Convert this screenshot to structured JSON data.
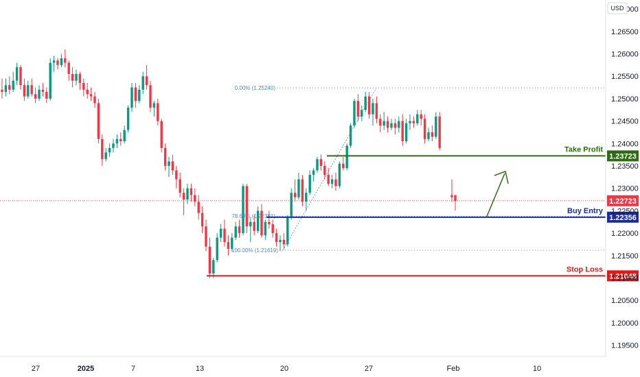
{
  "chart_data": {
    "type": "candlestick",
    "currency": "USD",
    "ylim": [
      1.1925,
      1.272
    ],
    "y_ticks": [
      "1.27000",
      "1.26500",
      "1.26000",
      "1.25500",
      "1.25000",
      "1.24500",
      "1.24000",
      "1.23500",
      "1.23000",
      "1.22500",
      "1.22000",
      "1.21500",
      "1.21000",
      "1.20500",
      "1.20000",
      "1.19500"
    ],
    "x_ticks": [
      "27",
      "2025",
      "7",
      "13",
      "20",
      "27",
      "Feb",
      "10"
    ],
    "last_price": "1.22723",
    "levels": [
      {
        "name": "Take Profit",
        "value": 1.23723,
        "label": "1.23723",
        "color": "#2e6b12"
      },
      {
        "name": "Buy Entry",
        "value": 1.22356,
        "label": "1.22356",
        "color": "#1a2aa0"
      },
      {
        "name": "Stop Loss",
        "value": 1.21048,
        "label": "1.21048",
        "color": "#e01818"
      }
    ],
    "fib": [
      {
        "label": "0.00% (1.25240)",
        "value": 1.2524
      },
      {
        "label": "78.60% (1.22381)",
        "value": 1.22381
      },
      {
        "label": "100.00% (1.21619)",
        "value": 1.21619
      }
    ],
    "candles": [
      [
        1.252,
        1.2545,
        1.25,
        1.2515
      ],
      [
        1.2515,
        1.2545,
        1.2505,
        1.253
      ],
      [
        1.253,
        1.255,
        1.251,
        1.252
      ],
      [
        1.252,
        1.256,
        1.2515,
        1.254
      ],
      [
        1.254,
        1.258,
        1.253,
        1.257
      ],
      [
        1.257,
        1.2575,
        1.252,
        1.253
      ],
      [
        1.253,
        1.2545,
        1.2495,
        1.2505
      ],
      [
        1.2505,
        1.254,
        1.25,
        1.253
      ],
      [
        1.253,
        1.2545,
        1.2505,
        1.251
      ],
      [
        1.251,
        1.2525,
        1.249,
        1.25
      ],
      [
        1.25,
        1.253,
        1.2495,
        1.252
      ],
      [
        1.252,
        1.2535,
        1.2505,
        1.2515
      ],
      [
        1.2515,
        1.2525,
        1.249,
        1.25
      ],
      [
        1.25,
        1.259,
        1.2495,
        1.258
      ],
      [
        1.258,
        1.2595,
        1.256,
        1.2585
      ],
      [
        1.2585,
        1.259,
        1.2565,
        1.2575
      ],
      [
        1.2575,
        1.26,
        1.257,
        1.259
      ],
      [
        1.259,
        1.261,
        1.257,
        1.258
      ],
      [
        1.258,
        1.2585,
        1.254,
        1.2555
      ],
      [
        1.2555,
        1.257,
        1.2525,
        1.254
      ],
      [
        1.254,
        1.2565,
        1.253,
        1.2555
      ],
      [
        1.2555,
        1.256,
        1.252,
        1.2535
      ],
      [
        1.2535,
        1.2545,
        1.2505,
        1.252
      ],
      [
        1.252,
        1.2535,
        1.25,
        1.251
      ],
      [
        1.251,
        1.2525,
        1.2495,
        1.2505
      ],
      [
        1.2505,
        1.2515,
        1.248,
        1.249
      ],
      [
        1.249,
        1.25,
        1.24,
        1.241
      ],
      [
        1.241,
        1.242,
        1.235,
        1.2365
      ],
      [
        1.2365,
        1.239,
        1.236,
        1.238
      ],
      [
        1.238,
        1.24,
        1.237,
        1.239
      ],
      [
        1.239,
        1.241,
        1.238,
        1.24
      ],
      [
        1.24,
        1.242,
        1.239,
        1.241
      ],
      [
        1.241,
        1.2425,
        1.2395,
        1.2405
      ],
      [
        1.2405,
        1.244,
        1.24,
        1.243
      ],
      [
        1.243,
        1.2485,
        1.2425,
        1.248
      ],
      [
        1.248,
        1.2535,
        1.247,
        1.2525
      ],
      [
        1.2525,
        1.2535,
        1.248,
        1.2495
      ],
      [
        1.2495,
        1.253,
        1.249,
        1.252
      ],
      [
        1.252,
        1.256,
        1.251,
        1.255
      ],
      [
        1.255,
        1.2575,
        1.252,
        1.253
      ],
      [
        1.253,
        1.254,
        1.247,
        1.248
      ],
      [
        1.248,
        1.2495,
        1.246,
        1.249
      ],
      [
        1.249,
        1.25,
        1.244,
        1.245
      ],
      [
        1.245,
        1.2455,
        1.238,
        1.239
      ],
      [
        1.239,
        1.24,
        1.234,
        1.235
      ],
      [
        1.235,
        1.237,
        1.2325,
        1.236
      ],
      [
        1.236,
        1.2375,
        1.233,
        1.234
      ],
      [
        1.234,
        1.235,
        1.23,
        1.232
      ],
      [
        1.232,
        1.2335,
        1.228,
        1.229
      ],
      [
        1.229,
        1.23,
        1.224,
        1.2275
      ],
      [
        1.2275,
        1.231,
        1.2265,
        1.23
      ],
      [
        1.23,
        1.231,
        1.227,
        1.2285
      ],
      [
        1.2285,
        1.23,
        1.226,
        1.227
      ],
      [
        1.227,
        1.2285,
        1.223,
        1.2245
      ],
      [
        1.2245,
        1.226,
        1.22,
        1.2215
      ],
      [
        1.2215,
        1.223,
        1.216,
        1.217
      ],
      [
        1.217,
        1.219,
        1.21,
        1.211
      ],
      [
        1.211,
        1.2145,
        1.21,
        1.214
      ],
      [
        1.214,
        1.22,
        1.2135,
        1.219
      ],
      [
        1.219,
        1.222,
        1.218,
        1.221
      ],
      [
        1.221,
        1.223,
        1.217,
        1.218
      ],
      [
        1.218,
        1.2195,
        1.215,
        1.2165
      ],
      [
        1.2165,
        1.22,
        1.216,
        1.219
      ],
      [
        1.219,
        1.2225,
        1.2185,
        1.2215
      ],
      [
        1.2215,
        1.223,
        1.219,
        1.22
      ],
      [
        1.22,
        1.231,
        1.2195,
        1.2305
      ],
      [
        1.2305,
        1.231,
        1.22,
        1.2215
      ],
      [
        1.2215,
        1.2235,
        1.218,
        1.2225
      ],
      [
        1.2225,
        1.224,
        1.2195,
        1.2205
      ],
      [
        1.2205,
        1.226,
        1.22,
        1.225
      ],
      [
        1.225,
        1.2265,
        1.219,
        1.2195
      ],
      [
        1.2195,
        1.223,
        1.2185,
        1.2225
      ],
      [
        1.2225,
        1.225,
        1.221,
        1.222
      ],
      [
        1.222,
        1.223,
        1.219,
        1.22
      ],
      [
        1.22,
        1.221,
        1.217,
        1.218
      ],
      [
        1.218,
        1.2195,
        1.216,
        1.2185
      ],
      [
        1.2185,
        1.22,
        1.2165,
        1.2175
      ],
      [
        1.2175,
        1.224,
        1.217,
        1.2235
      ],
      [
        1.2235,
        1.23,
        1.223,
        1.229
      ],
      [
        1.229,
        1.232,
        1.227,
        1.228
      ],
      [
        1.228,
        1.2335,
        1.2275,
        1.232
      ],
      [
        1.232,
        1.233,
        1.226,
        1.227
      ],
      [
        1.227,
        1.23,
        1.225,
        1.229
      ],
      [
        1.229,
        1.234,
        1.2285,
        1.233
      ],
      [
        1.233,
        1.2345,
        1.2315,
        1.234
      ],
      [
        1.234,
        1.237,
        1.2335,
        1.2365
      ],
      [
        1.2365,
        1.2375,
        1.234,
        1.235
      ],
      [
        1.235,
        1.236,
        1.232,
        1.233
      ],
      [
        1.233,
        1.2345,
        1.2305,
        1.231
      ],
      [
        1.231,
        1.233,
        1.23,
        1.232
      ],
      [
        1.232,
        1.2335,
        1.2295,
        1.2305
      ],
      [
        1.2305,
        1.236,
        1.23,
        1.2355
      ],
      [
        1.2355,
        1.237,
        1.234,
        1.2345
      ],
      [
        1.2345,
        1.24,
        1.234,
        1.2395
      ],
      [
        1.2395,
        1.2445,
        1.239,
        1.244
      ],
      [
        1.244,
        1.25,
        1.2435,
        1.2495
      ],
      [
        1.2495,
        1.251,
        1.245,
        1.246
      ],
      [
        1.246,
        1.2485,
        1.245,
        1.2475
      ],
      [
        1.2475,
        1.2515,
        1.247,
        1.2505
      ],
      [
        1.2505,
        1.2515,
        1.2455,
        1.2465
      ],
      [
        1.2465,
        1.25,
        1.244,
        1.249
      ],
      [
        1.249,
        1.2505,
        1.2445,
        1.2455
      ],
      [
        1.2455,
        1.2465,
        1.2425,
        1.244
      ],
      [
        1.244,
        1.247,
        1.243,
        1.245
      ],
      [
        1.245,
        1.246,
        1.2425,
        1.2435
      ],
      [
        1.2435,
        1.2455,
        1.243,
        1.2445
      ],
      [
        1.2445,
        1.2455,
        1.242,
        1.2435
      ],
      [
        1.2435,
        1.246,
        1.2425,
        1.245
      ],
      [
        1.245,
        1.2465,
        1.2395,
        1.2405
      ],
      [
        1.2405,
        1.2455,
        1.24,
        1.2445
      ],
      [
        1.2445,
        1.2465,
        1.243,
        1.245
      ],
      [
        1.245,
        1.246,
        1.2435,
        1.2445
      ],
      [
        1.2445,
        1.2475,
        1.244,
        1.2465
      ],
      [
        1.2465,
        1.2475,
        1.244,
        1.2455
      ],
      [
        1.2455,
        1.2465,
        1.24,
        1.241
      ],
      [
        1.241,
        1.2435,
        1.2405,
        1.2425
      ],
      [
        1.2425,
        1.244,
        1.2405,
        1.2415
      ],
      [
        1.2415,
        1.247,
        1.241,
        1.246
      ],
      [
        1.246,
        1.247,
        1.2385,
        1.239
      ]
    ],
    "last_candles": [
      [
        1.2285,
        1.232,
        1.227,
        1.228
      ],
      [
        1.2285,
        1.2285,
        1.225,
        1.2272
      ]
    ]
  }
}
